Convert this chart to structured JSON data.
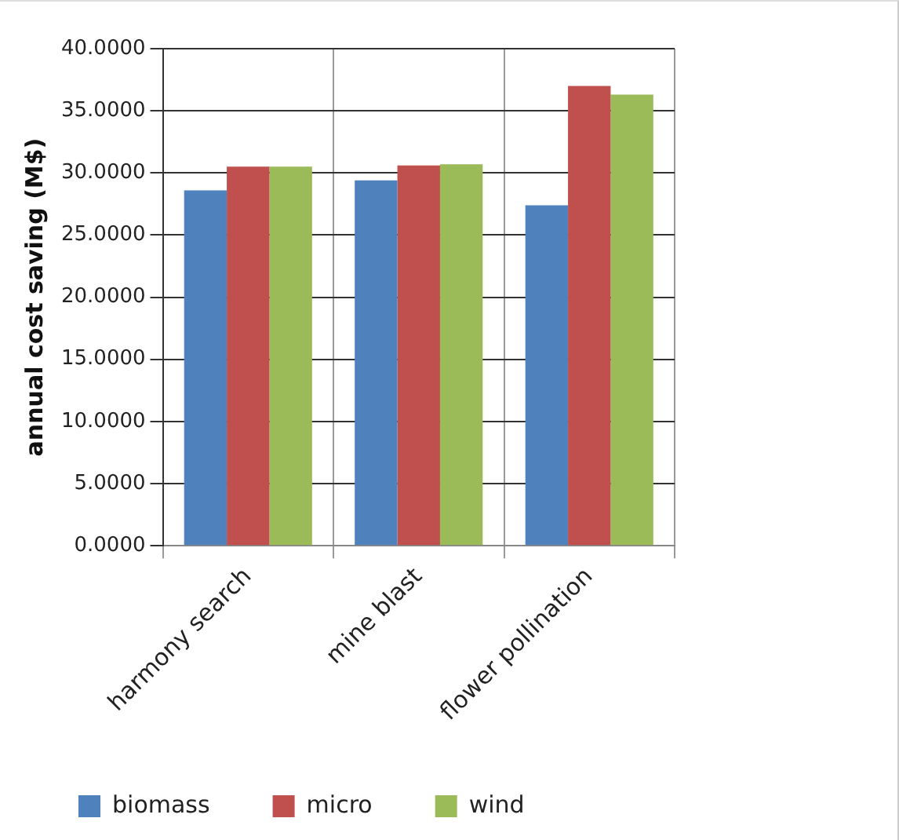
{
  "chart_data": {
    "type": "bar",
    "ylabel": "annual cost saving (M$)",
    "categories": [
      "harmony search",
      "mine blast",
      "flower pollination"
    ],
    "series": [
      {
        "name": "biomass",
        "color": "#4f81bd",
        "values": [
          28.6,
          29.4,
          27.4
        ]
      },
      {
        "name": "micro",
        "color": "#c0504d",
        "values": [
          30.5,
          30.6,
          37.0
        ]
      },
      {
        "name": "wind",
        "color": "#9bbb59",
        "values": [
          30.5,
          30.7,
          36.3
        ]
      }
    ],
    "ylim": [
      0,
      40
    ],
    "yticks": [
      {
        "value": 0,
        "label": "0.0000"
      },
      {
        "value": 5,
        "label": "5.0000"
      },
      {
        "value": 10,
        "label": "10.0000"
      },
      {
        "value": 15,
        "label": "15.0000"
      },
      {
        "value": 20,
        "label": "20.0000"
      },
      {
        "value": 25,
        "label": "25.0000"
      },
      {
        "value": 30,
        "label": "30.0000"
      },
      {
        "value": 35,
        "label": "35.0000"
      },
      {
        "value": 40,
        "label": "40.0000"
      }
    ],
    "grid": true,
    "legend": "bottom"
  }
}
